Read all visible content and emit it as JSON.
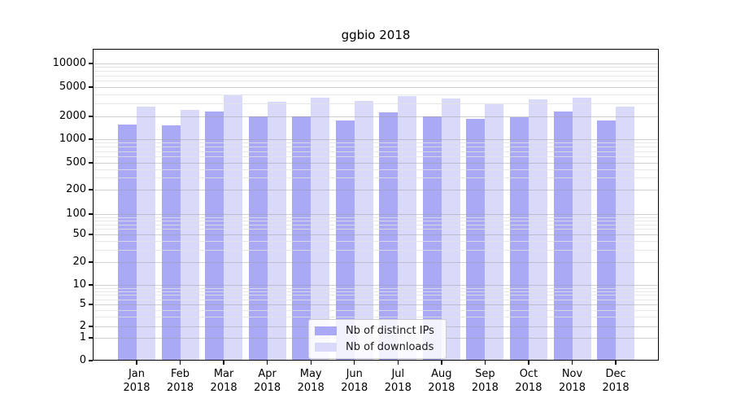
{
  "chart_data": {
    "type": "bar",
    "title": "ggbio 2018",
    "categories": [
      "Jan 2018",
      "Feb 2018",
      "Mar 2018",
      "Apr 2018",
      "May 2018",
      "Jun 2018",
      "Jul 2018",
      "Aug 2018",
      "Sep 2018",
      "Oct 2018",
      "Nov 2018",
      "Dec 2018"
    ],
    "series": [
      {
        "name": "Nb of distinct IPs",
        "color": "#a9a9f6",
        "values": [
          1560,
          1520,
          2320,
          2000,
          2020,
          1750,
          2250,
          2010,
          1870,
          1950,
          2340,
          1780
        ]
      },
      {
        "name": "Nb of downloads",
        "color": "#d9d9f9",
        "values": [
          2710,
          2480,
          3900,
          3200,
          3600,
          3230,
          3740,
          3480,
          2950,
          3390,
          3600,
          2750
        ]
      }
    ],
    "xlabel": "",
    "ylabel": "",
    "yscale": "symlog",
    "y_ticks": [
      0,
      1,
      2,
      5,
      10,
      20,
      50,
      100,
      200,
      500,
      1000,
      2000,
      5000,
      10000
    ],
    "ylim": [
      0,
      15400
    ],
    "grid": "major and minor horizontal gridlines",
    "legend_position": "lower center"
  },
  "colors": {
    "distinct_ips_bar": "#a9a9f6",
    "downloads_bar": "#d9d9f9",
    "grid_major": "#cfcfcf",
    "grid_minor": "#e8e8e8",
    "frame": "#000000",
    "background": "#ffffff"
  }
}
